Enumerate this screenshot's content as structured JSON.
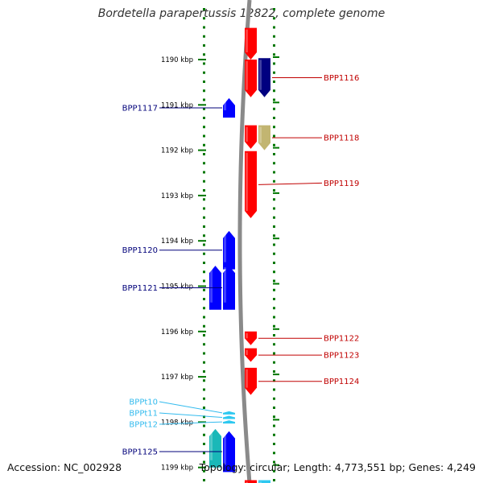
{
  "title": "Bordetella parapertussis 12822, complete genome",
  "accession_text": "Accession: NC_002928",
  "summary_text": "Topology: circular; Length: 4,773,551 bp; Genes: 4,249",
  "colors": {
    "forward_cds": "#ff0000",
    "reverse_cds": "#0000ff",
    "tan_cds": "#c2b571",
    "navy_cds": "#000080",
    "trna": "#2ec8f0",
    "cyan_feature": "#1ab8b8",
    "tick": "#007700",
    "backbone": "#8a8a8a"
  },
  "scale": {
    "unit": "kbp",
    "ticks": [
      {
        "label": "1190 kbp",
        "kbp": 1190
      },
      {
        "label": "1191 kbp",
        "kbp": 1191
      },
      {
        "label": "1192 kbp",
        "kbp": 1192
      },
      {
        "label": "1193 kbp",
        "kbp": 1193
      },
      {
        "label": "1194 kbp",
        "kbp": 1194
      },
      {
        "label": "1195 kbp",
        "kbp": 1195
      },
      {
        "label": "1196 kbp",
        "kbp": 1196
      },
      {
        "label": "1197 kbp",
        "kbp": 1197
      },
      {
        "label": "1198 kbp",
        "kbp": 1198
      },
      {
        "label": "1199 kbp",
        "kbp": 1199
      }
    ]
  },
  "genes": [
    {
      "name": "",
      "strand": "+",
      "color": "forward_cds",
      "lane": "outer",
      "start_kbp": 1189.3,
      "end_kbp": 1190.0
    },
    {
      "name": "",
      "strand": "+",
      "color": "forward_cds",
      "lane": "outer",
      "start_kbp": 1190.0,
      "end_kbp": 1190.83
    },
    {
      "name": "BPP1116",
      "strand": "+",
      "color": "navy_cds",
      "lane": "outer2",
      "start_kbp": 1189.97,
      "end_kbp": 1190.83
    },
    {
      "name": "BPP1117",
      "strand": "-",
      "color": "reverse_cds",
      "lane": "inner",
      "start_kbp": 1190.85,
      "end_kbp": 1191.28
    },
    {
      "name": "",
      "strand": "+",
      "color": "forward_cds",
      "lane": "outer",
      "start_kbp": 1191.45,
      "end_kbp": 1191.97
    },
    {
      "name": "BPP1118",
      "strand": "+",
      "color": "tan_cds",
      "lane": "outer2",
      "start_kbp": 1191.45,
      "end_kbp": 1192.0
    },
    {
      "name": "BPP1119",
      "strand": "+",
      "color": "forward_cds",
      "lane": "outer",
      "start_kbp": 1192.02,
      "end_kbp": 1193.5
    },
    {
      "name": "BPP1120",
      "strand": "-",
      "color": "reverse_cds",
      "lane": "inner",
      "start_kbp": 1193.78,
      "end_kbp": 1194.63
    },
    {
      "name": "BPP1121",
      "strand": "-",
      "color": "reverse_cds",
      "lane": "inner",
      "start_kbp": 1194.55,
      "end_kbp": 1195.52
    },
    {
      "name": "",
      "strand": "-",
      "color": "reverse_cds",
      "lane": "inner2",
      "start_kbp": 1194.55,
      "end_kbp": 1195.52
    },
    {
      "name": "BPP1122",
      "strand": "+",
      "color": "forward_cds",
      "lane": "outer",
      "start_kbp": 1196.0,
      "end_kbp": 1196.3
    },
    {
      "name": "BPP1123",
      "strand": "+",
      "color": "forward_cds",
      "lane": "outer",
      "start_kbp": 1196.37,
      "end_kbp": 1196.67
    },
    {
      "name": "BPP1124",
      "strand": "+",
      "color": "forward_cds",
      "lane": "outer",
      "start_kbp": 1196.8,
      "end_kbp": 1197.4
    },
    {
      "name": "BPPt10",
      "strand": "-",
      "color": "trna",
      "lane": "inner",
      "start_kbp": 1197.76,
      "end_kbp": 1197.83
    },
    {
      "name": "BPPt11",
      "strand": "-",
      "color": "trna",
      "lane": "inner",
      "start_kbp": 1197.86,
      "end_kbp": 1197.93
    },
    {
      "name": "BPPt12",
      "strand": "-",
      "color": "trna",
      "lane": "inner",
      "start_kbp": 1197.96,
      "end_kbp": 1198.03
    },
    {
      "name": "BPP1125",
      "strand": "-",
      "color": "reverse_cds",
      "lane": "inner",
      "start_kbp": 1198.2,
      "end_kbp": 1199.1
    },
    {
      "name": "",
      "strand": "-",
      "color": "cyan_feature",
      "lane": "inner2",
      "start_kbp": 1198.15,
      "end_kbp": 1199.0
    },
    {
      "name": "",
      "strand": "+",
      "color": "forward_cds",
      "lane": "outer",
      "start_kbp": 1199.28,
      "end_kbp": 1199.5
    },
    {
      "name": "",
      "strand": "+",
      "color": "trna",
      "lane": "outer2",
      "start_kbp": 1199.28,
      "end_kbp": 1199.5
    }
  ]
}
